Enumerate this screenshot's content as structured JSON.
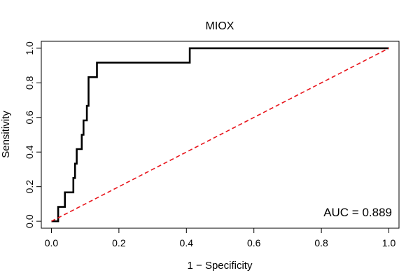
{
  "chart_data": {
    "type": "line",
    "title": "MIOX",
    "xlabel": "1 − Specificity",
    "ylabel": "Sensitivity",
    "xlim": [
      -0.03,
      1.03
    ],
    "ylim": [
      -0.04,
      1.04
    ],
    "x_ticks": [
      0.0,
      0.2,
      0.4,
      0.6,
      0.8,
      1.0
    ],
    "x_tick_labels": [
      "0.0",
      "0.2",
      "0.4",
      "0.6",
      "0.8",
      "1.0"
    ],
    "y_ticks": [
      0.0,
      0.2,
      0.4,
      0.6,
      0.8,
      1.0
    ],
    "y_tick_labels": [
      "0.0",
      "0.2",
      "0.4",
      "0.6",
      "0.8",
      "1.0"
    ],
    "grid": false,
    "legend": "none",
    "annotation": "AUC = 0.889",
    "series": [
      {
        "color": "#000000",
        "style": "solid-step",
        "x": [
          0.0,
          0.02,
          0.02,
          0.04,
          0.04,
          0.065,
          0.065,
          0.07,
          0.07,
          0.075,
          0.075,
          0.09,
          0.09,
          0.095,
          0.095,
          0.105,
          0.105,
          0.11,
          0.11,
          0.12,
          0.12,
          0.135,
          0.135,
          0.41,
          0.41,
          1.0
        ],
        "y": [
          0.0,
          0.0,
          0.083,
          0.083,
          0.167,
          0.167,
          0.25,
          0.25,
          0.333,
          0.333,
          0.417,
          0.417,
          0.5,
          0.5,
          0.583,
          0.583,
          0.667,
          0.667,
          0.833,
          0.833,
          0.833,
          0.833,
          0.917,
          0.917,
          1.0,
          1.0
        ]
      },
      {
        "color": "#e8141b",
        "style": "dashed",
        "x": [
          0.0,
          1.0
        ],
        "y": [
          0.0,
          1.0
        ]
      }
    ]
  }
}
